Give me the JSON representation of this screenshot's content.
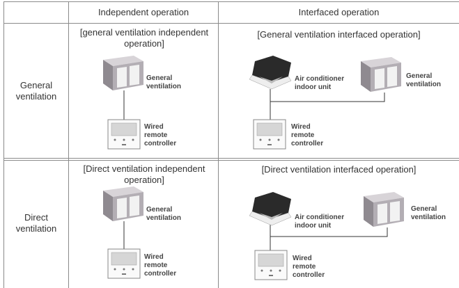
{
  "table": {
    "header": [
      "Independent operation",
      "Interfaced operation"
    ],
    "rows": [
      {
        "label": "General ventilation",
        "independent": {
          "caption": "[general ventilation independent operation]",
          "ventilation": "General ventilation",
          "remote": "Wired remote controller"
        },
        "interfaced": {
          "caption": "[General ventilation interfaced operation]",
          "indoor_unit": "Air conditioner indoor unit",
          "ventilation": "General ventilation",
          "remote": "Wired remote controller"
        }
      },
      {
        "label": "Direct ventilation",
        "independent": {
          "caption": "[Direct ventilation independent operation]",
          "ventilation": "General ventilation",
          "remote": "Wired remote controller"
        },
        "interfaced": {
          "caption": "[Direct ventilation interfaced operation]",
          "indoor_unit": "Air conditioner indoor unit",
          "ventilation": "General ventilation",
          "remote": "Wired remote controller"
        }
      }
    ]
  }
}
